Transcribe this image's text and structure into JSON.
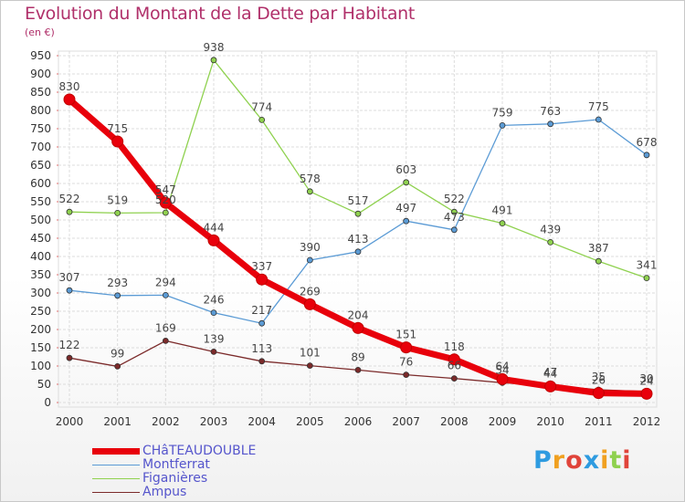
{
  "title": "Evolution du Montant de la Dette par Habitant",
  "unit": "(en €)",
  "logo": "Proxiti",
  "chart_data": {
    "type": "line",
    "x": [
      "2000",
      "2001",
      "2002",
      "2003",
      "2004",
      "2005",
      "2006",
      "2007",
      "2008",
      "2009",
      "2010",
      "2011",
      "2012"
    ],
    "ylim": [
      0,
      950
    ],
    "yticks": [
      0,
      50,
      100,
      150,
      200,
      250,
      300,
      350,
      400,
      450,
      500,
      550,
      600,
      650,
      700,
      750,
      800,
      850,
      900,
      950
    ],
    "grid": true,
    "legend": "bottom-left",
    "series": [
      {
        "name": "CHâTEAUDOUBLE",
        "color": "#e8000b",
        "width": 7,
        "values": [
          830,
          715,
          547,
          444,
          337,
          269,
          204,
          151,
          118,
          64,
          44,
          26,
          24
        ]
      },
      {
        "name": "Montferrat",
        "color": "#5b9bd5",
        "width": 1.3,
        "values": [
          307,
          293,
          294,
          246,
          217,
          390,
          413,
          497,
          473,
          759,
          763,
          775,
          678
        ]
      },
      {
        "name": "Figanières",
        "color": "#8fd14f",
        "width": 1.3,
        "values": [
          522,
          519,
          520,
          938,
          774,
          578,
          517,
          603,
          522,
          491,
          439,
          387,
          341
        ]
      },
      {
        "name": "Ampus",
        "color": "#7b2a2a",
        "width": 1.3,
        "values": [
          122,
          99,
          169,
          139,
          113,
          101,
          89,
          76,
          66,
          54,
          47,
          35,
          30
        ]
      }
    ],
    "data_labels": [
      [
        "830",
        "715",
        "547",
        "444",
        "337",
        "269",
        "204",
        "151",
        "118",
        "64",
        "44",
        "26",
        "24"
      ],
      [
        "307",
        "293",
        "294",
        "246",
        "217",
        "390",
        "413",
        "497",
        "473",
        "759",
        "763",
        "775",
        "678"
      ],
      [
        "522",
        "519",
        "520",
        "938",
        "774",
        "578",
        "517",
        "603",
        "522",
        "491",
        "439",
        "387",
        "341"
      ],
      [
        "122",
        "99",
        "169",
        "139",
        "113",
        "101",
        "89",
        "76",
        "66",
        "54",
        "47",
        "35",
        "30"
      ]
    ]
  }
}
